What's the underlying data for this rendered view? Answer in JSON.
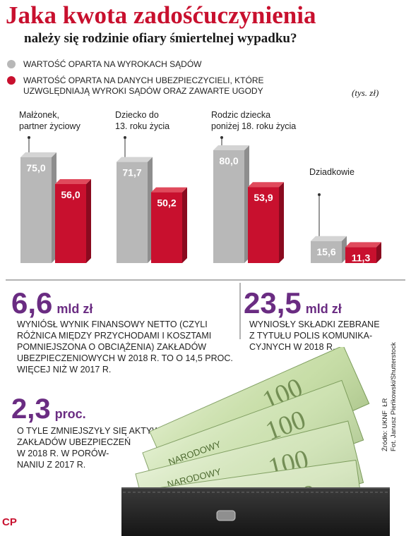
{
  "title": "Jaka kwota zadośćuczynienia",
  "subtitle": "należy się rodzinie ofiary śmiertelnej wypadku?",
  "legend": [
    {
      "label": "WARTOŚĆ OPARTA NA WYROKACH SĄDÓW",
      "color": "#b8b8b8"
    },
    {
      "label": "WARTOŚĆ OPARTA NA DANYCH UBEZPIECZYCIELI, KTÓRE\nUZWGLĘDNIAJĄ WYROKI SĄDÓW ORAZ ZAWARTE UGODY",
      "color": "#c8102e"
    }
  ],
  "unit_label": "(tys. zł)",
  "colors": {
    "accent": "#c8102e",
    "gray_series": "#b8b8b8",
    "stat_purple": "#6a2c82"
  },
  "chart_data": {
    "type": "bar",
    "categories": [
      "Małżonek,\npartner życiowy",
      "Dziecko do\n13. roku życia",
      "Rodzic dziecka\nponiżej 18. roku życia",
      "Dziadkowie"
    ],
    "series": [
      {
        "name": "WARTOŚĆ OPARTA NA WYROKACH SĄDÓW",
        "values": [
          75.0,
          71.7,
          80.0,
          15.6
        ],
        "labels": [
          "75,0",
          "71,7",
          "80,0",
          "15,6"
        ]
      },
      {
        "name": "WARTOŚĆ OPARTA NA DANYCH UBEZPIECZYCIELI, KTÓRE UZWGLĘDNIAJĄ WYROKI SĄDÓW ORAZ ZAWARTE UGODY",
        "values": [
          56.0,
          50.2,
          53.9,
          11.3
        ],
        "labels": [
          "56,0",
          "50,2",
          "53,9",
          "11,3"
        ]
      }
    ],
    "ylim": [
      0,
      80
    ],
    "grid": false,
    "legend_placement": "top-left"
  },
  "stats": [
    {
      "number": "6,6",
      "unit": "mld zł",
      "text": "WYNIÓSŁ WYNIK FINANSOWY NETTO (CZYLI\nRÓŻNICA MIĘDZY PRZYCHODAMI I KOSZTAMI\nPOMNIEJSZONA O OBCIĄŻENIA) ZAKŁADÓW\nUBEZPIECZENIOWYCH W 2018 R. TO O 14,5 PROC.\nWIĘCEJ NIŻ W 2017 R."
    },
    {
      "number": "23,5",
      "unit": "mld zł",
      "text": "WYNIOSŁY SKŁADKI ZEBRANE\nZ TYTUŁU POLIS KOMUNIKA-\nCYJNYCH W 2018 R."
    },
    {
      "number": "2,3",
      "unit": "proc.",
      "text": "O TYLE ZMNIEJSZYŁY SIĘ AKTYWA\nZAKŁADÓW UBEZPIECZEŃ\nW 2018 R. W PORÓW-\nNANIU Z 2017 R."
    }
  ],
  "source": "Źródło: UKNF  ŁR\nFot. Janusz Pieńkowski/Shutterstock",
  "logo": "CP",
  "banknote_text": [
    "NARODOWY",
    "100"
  ]
}
